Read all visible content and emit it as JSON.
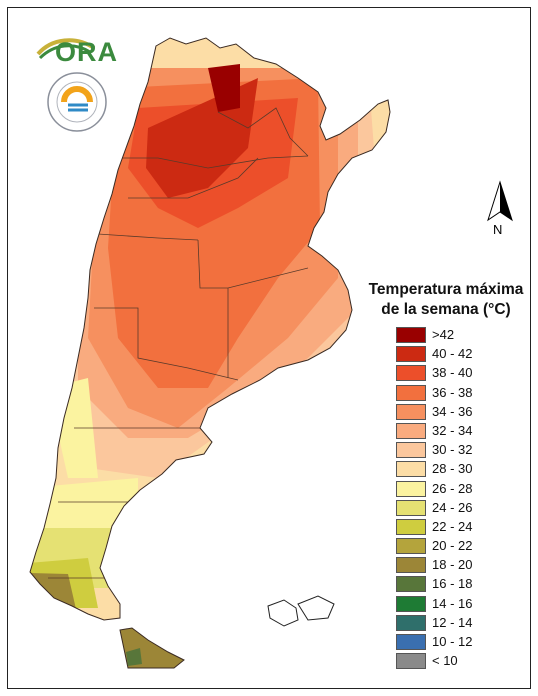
{
  "logo": {
    "text": "ORA",
    "seal_name": "smn-seal"
  },
  "north_arrow": {
    "label": "N"
  },
  "legend": {
    "title_line1": "Temperatura máxima",
    "title_line2": "de la semana (°C)",
    "items": [
      {
        "label": ">42",
        "color": "#990000"
      },
      {
        "label": "40 - 42",
        "color": "#cc2a12"
      },
      {
        "label": "38 - 40",
        "color": "#ec4f2a"
      },
      {
        "label": "36 - 38",
        "color": "#f2703e"
      },
      {
        "label": "34 - 36",
        "color": "#f6905f"
      },
      {
        "label": "32 - 34",
        "color": "#f9ab7f"
      },
      {
        "label": "30 - 32",
        "color": "#fbc79d"
      },
      {
        "label": "28 - 30",
        "color": "#fcdda6"
      },
      {
        "label": "26 - 28",
        "color": "#fbf3a0"
      },
      {
        "label": "24 - 26",
        "color": "#e5e173"
      },
      {
        "label": "22 - 24",
        "color": "#cfcd3f"
      },
      {
        "label": "20 - 22",
        "color": "#b4a43c"
      },
      {
        "label": "18 - 20",
        "color": "#9c8637"
      },
      {
        "label": "16 - 18",
        "color": "#58763a"
      },
      {
        "label": "14 - 16",
        "color": "#1e7b34"
      },
      {
        "label": "12 - 14",
        "color": "#2f6f6b"
      },
      {
        "label": "10 - 12",
        "color": "#3a6fb0"
      },
      {
        "label": "< 10",
        "color": "#8a8a8a"
      }
    ]
  }
}
